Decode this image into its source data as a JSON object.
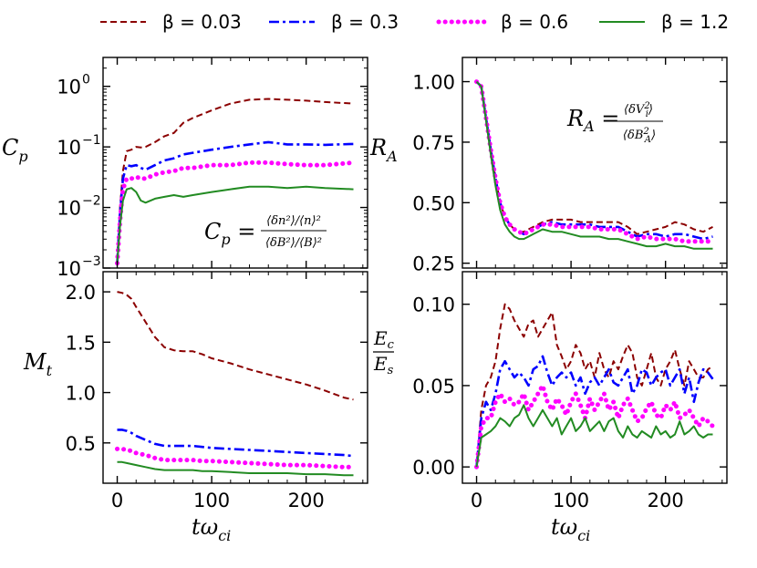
{
  "legend": [
    {
      "label": "β = 0.03",
      "color": "#8b0000",
      "dash": "dashed"
    },
    {
      "label": "β = 0.3",
      "color": "#0000ff",
      "dash": "dashdot"
    },
    {
      "label": "β = 0.6",
      "color": "#ff00ff",
      "dash": "dotted"
    },
    {
      "label": "β = 1.2",
      "color": "#228b22",
      "dash": "solid"
    }
  ],
  "chart_data": [
    {
      "type": "line",
      "panel": "top-left",
      "ylabel": "C_p",
      "xlabel": "",
      "yscale": "log",
      "xlim": [
        -15,
        265
      ],
      "ylim": [
        0.001,
        3
      ],
      "yticks": [
        0.001,
        0.01,
        0.1,
        1
      ],
      "ytick_labels": [
        "10",
        "10",
        "10",
        "10"
      ],
      "ytick_exponents": [
        "−3",
        "−2",
        "−1",
        "0"
      ],
      "xticks": [
        0,
        100,
        200
      ],
      "xtick_labels": [
        "",
        "",
        ""
      ],
      "annotation": "C_p = ⟨δn²⟩/⟨n⟩² / ⟨δB²⟩/⟨B⟩²",
      "x": [
        0,
        3,
        6,
        10,
        15,
        20,
        25,
        30,
        40,
        50,
        60,
        70,
        80,
        100,
        120,
        140,
        160,
        180,
        200,
        220,
        250
      ],
      "series": [
        {
          "name": "β = 0.03",
          "values": [
            0.0013,
            0.01,
            0.04,
            0.085,
            0.09,
            0.1,
            0.098,
            0.1,
            0.12,
            0.15,
            0.17,
            0.25,
            0.3,
            0.4,
            0.52,
            0.6,
            0.62,
            0.6,
            0.58,
            0.55,
            0.52
          ]
        },
        {
          "name": "β = 0.3",
          "values": [
            0.0012,
            0.008,
            0.03,
            0.05,
            0.048,
            0.05,
            0.045,
            0.042,
            0.05,
            0.06,
            0.065,
            0.075,
            0.08,
            0.09,
            0.1,
            0.11,
            0.12,
            0.11,
            0.11,
            0.108,
            0.112
          ]
        },
        {
          "name": "β = 0.6",
          "values": [
            0.0012,
            0.006,
            0.02,
            0.03,
            0.03,
            0.032,
            0.03,
            0.03,
            0.035,
            0.038,
            0.04,
            0.045,
            0.045,
            0.05,
            0.05,
            0.055,
            0.055,
            0.052,
            0.05,
            0.05,
            0.055
          ]
        },
        {
          "name": "β = 1.2",
          "values": [
            0.0012,
            0.005,
            0.013,
            0.02,
            0.021,
            0.018,
            0.013,
            0.012,
            0.014,
            0.015,
            0.016,
            0.015,
            0.016,
            0.018,
            0.02,
            0.022,
            0.022,
            0.021,
            0.022,
            0.021,
            0.02
          ]
        }
      ]
    },
    {
      "type": "line",
      "panel": "top-right",
      "ylabel": "R_A",
      "xlabel": "",
      "yscale": "linear",
      "xlim": [
        -15,
        265
      ],
      "ylim": [
        0.23,
        1.1
      ],
      "yticks": [
        0.25,
        0.5,
        0.75,
        1.0
      ],
      "ytick_labels": [
        "0.25",
        "0.50",
        "0.75",
        "1.00"
      ],
      "xticks": [
        0,
        100,
        200
      ],
      "xtick_labels": [
        "",
        "",
        ""
      ],
      "annotation": "R_A = ⟨δV_i²⟩ / ⟨δB_A²⟩",
      "x": [
        0,
        5,
        10,
        15,
        20,
        25,
        30,
        35,
        40,
        45,
        50,
        55,
        60,
        70,
        80,
        90,
        100,
        110,
        120,
        130,
        140,
        150,
        160,
        170,
        180,
        190,
        200,
        210,
        220,
        230,
        240,
        250
      ],
      "series": [
        {
          "name": "β = 0.03",
          "values": [
            1.0,
            0.98,
            0.85,
            0.72,
            0.6,
            0.5,
            0.44,
            0.41,
            0.39,
            0.38,
            0.38,
            0.39,
            0.4,
            0.42,
            0.43,
            0.43,
            0.43,
            0.42,
            0.42,
            0.42,
            0.42,
            0.42,
            0.4,
            0.37,
            0.38,
            0.39,
            0.4,
            0.42,
            0.41,
            0.39,
            0.38,
            0.4
          ]
        },
        {
          "name": "β = 0.3",
          "values": [
            1.0,
            0.98,
            0.85,
            0.72,
            0.6,
            0.5,
            0.44,
            0.41,
            0.39,
            0.38,
            0.37,
            0.38,
            0.39,
            0.41,
            0.42,
            0.41,
            0.41,
            0.41,
            0.41,
            0.4,
            0.4,
            0.4,
            0.38,
            0.36,
            0.37,
            0.37,
            0.36,
            0.37,
            0.37,
            0.36,
            0.35,
            0.36
          ]
        },
        {
          "name": "β = 0.6",
          "values": [
            1.0,
            0.98,
            0.85,
            0.72,
            0.6,
            0.5,
            0.44,
            0.41,
            0.39,
            0.38,
            0.37,
            0.38,
            0.39,
            0.41,
            0.41,
            0.4,
            0.4,
            0.4,
            0.4,
            0.39,
            0.39,
            0.39,
            0.37,
            0.35,
            0.36,
            0.35,
            0.35,
            0.35,
            0.34,
            0.34,
            0.34,
            0.34
          ]
        },
        {
          "name": "β = 1.2",
          "values": [
            1.0,
            0.98,
            0.84,
            0.7,
            0.57,
            0.47,
            0.41,
            0.38,
            0.36,
            0.35,
            0.35,
            0.36,
            0.37,
            0.39,
            0.38,
            0.38,
            0.37,
            0.36,
            0.36,
            0.36,
            0.35,
            0.35,
            0.34,
            0.33,
            0.32,
            0.32,
            0.33,
            0.32,
            0.32,
            0.31,
            0.31,
            0.31
          ]
        }
      ]
    },
    {
      "type": "line",
      "panel": "bottom-left",
      "ylabel": "M_t",
      "xlabel": "tω_ci",
      "yscale": "linear",
      "xlim": [
        -15,
        265
      ],
      "ylim": [
        0.1,
        2.2
      ],
      "yticks": [
        0.5,
        1.0,
        1.5,
        2.0
      ],
      "ytick_labels": [
        "0.5",
        "1.0",
        "1.5",
        "2.0"
      ],
      "xticks": [
        0,
        100,
        200
      ],
      "xtick_labels": [
        "0",
        "100",
        "200"
      ],
      "x": [
        0,
        5,
        10,
        15,
        20,
        30,
        40,
        50,
        60,
        70,
        80,
        90,
        100,
        120,
        140,
        160,
        180,
        200,
        220,
        240,
        250
      ],
      "series": [
        {
          "name": "β = 0.03",
          "values": [
            2.0,
            1.99,
            1.97,
            1.93,
            1.85,
            1.7,
            1.55,
            1.45,
            1.42,
            1.41,
            1.41,
            1.38,
            1.34,
            1.29,
            1.23,
            1.18,
            1.13,
            1.08,
            1.02,
            0.95,
            0.93
          ]
        },
        {
          "name": "β = 0.3",
          "values": [
            0.63,
            0.63,
            0.62,
            0.6,
            0.57,
            0.53,
            0.49,
            0.47,
            0.47,
            0.47,
            0.47,
            0.46,
            0.45,
            0.44,
            0.43,
            0.42,
            0.41,
            0.4,
            0.39,
            0.38,
            0.37
          ]
        },
        {
          "name": "β = 0.6",
          "values": [
            0.44,
            0.44,
            0.43,
            0.42,
            0.4,
            0.38,
            0.35,
            0.33,
            0.33,
            0.33,
            0.33,
            0.32,
            0.32,
            0.31,
            0.3,
            0.29,
            0.28,
            0.28,
            0.27,
            0.26,
            0.26
          ]
        },
        {
          "name": "β = 1.2",
          "values": [
            0.31,
            0.31,
            0.3,
            0.29,
            0.28,
            0.26,
            0.24,
            0.23,
            0.23,
            0.23,
            0.23,
            0.22,
            0.22,
            0.21,
            0.2,
            0.2,
            0.2,
            0.19,
            0.19,
            0.18,
            0.18
          ]
        }
      ]
    },
    {
      "type": "line",
      "panel": "bottom-right",
      "ylabel": "E_c / E_s",
      "xlabel": "tω_ci",
      "yscale": "linear",
      "xlim": [
        -15,
        265
      ],
      "ylim": [
        -0.01,
        0.12
      ],
      "yticks": [
        0.0,
        0.05,
        0.1
      ],
      "ytick_labels": [
        "0.00",
        "0.05",
        "0.10"
      ],
      "xticks": [
        0,
        100,
        200
      ],
      "xtick_labels": [
        "0",
        "100",
        "200"
      ],
      "x": [
        0,
        5,
        10,
        15,
        20,
        25,
        30,
        35,
        40,
        45,
        50,
        55,
        60,
        65,
        70,
        75,
        80,
        85,
        90,
        95,
        100,
        105,
        110,
        115,
        120,
        125,
        130,
        135,
        140,
        145,
        150,
        155,
        160,
        165,
        170,
        175,
        180,
        185,
        190,
        195,
        200,
        205,
        210,
        215,
        220,
        225,
        230,
        235,
        240,
        245,
        250
      ],
      "series": [
        {
          "name": "β = 0.03",
          "values": [
            0.0,
            0.035,
            0.05,
            0.055,
            0.065,
            0.085,
            0.1,
            0.097,
            0.09,
            0.085,
            0.08,
            0.088,
            0.09,
            0.08,
            0.085,
            0.09,
            0.095,
            0.075,
            0.068,
            0.06,
            0.065,
            0.075,
            0.07,
            0.06,
            0.065,
            0.055,
            0.07,
            0.06,
            0.055,
            0.065,
            0.06,
            0.068,
            0.075,
            0.07,
            0.055,
            0.05,
            0.06,
            0.07,
            0.055,
            0.05,
            0.06,
            0.065,
            0.072,
            0.06,
            0.05,
            0.065,
            0.06,
            0.055,
            0.055,
            0.06,
            0.062
          ]
        },
        {
          "name": "β = 0.3",
          "values": [
            0.0,
            0.03,
            0.04,
            0.035,
            0.045,
            0.06,
            0.065,
            0.06,
            0.055,
            0.058,
            0.055,
            0.05,
            0.06,
            0.062,
            0.068,
            0.058,
            0.05,
            0.055,
            0.058,
            0.055,
            0.058,
            0.05,
            0.055,
            0.045,
            0.052,
            0.055,
            0.05,
            0.055,
            0.06,
            0.052,
            0.05,
            0.055,
            0.06,
            0.045,
            0.05,
            0.06,
            0.058,
            0.05,
            0.055,
            0.058,
            0.06,
            0.05,
            0.055,
            0.06,
            0.045,
            0.055,
            0.04,
            0.052,
            0.06,
            0.058,
            0.054
          ]
        },
        {
          "name": "β = 0.6",
          "values": [
            0.0,
            0.025,
            0.03,
            0.03,
            0.04,
            0.045,
            0.04,
            0.042,
            0.038,
            0.04,
            0.045,
            0.035,
            0.04,
            0.045,
            0.05,
            0.04,
            0.035,
            0.042,
            0.038,
            0.032,
            0.04,
            0.045,
            0.038,
            0.03,
            0.042,
            0.035,
            0.04,
            0.045,
            0.035,
            0.04,
            0.03,
            0.038,
            0.042,
            0.035,
            0.028,
            0.03,
            0.036,
            0.04,
            0.032,
            0.03,
            0.038,
            0.035,
            0.04,
            0.03,
            0.032,
            0.035,
            0.03,
            0.025,
            0.03,
            0.028,
            0.025
          ]
        },
        {
          "name": "β = 1.2",
          "values": [
            0.0,
            0.018,
            0.02,
            0.022,
            0.025,
            0.03,
            0.028,
            0.025,
            0.03,
            0.032,
            0.038,
            0.03,
            0.025,
            0.03,
            0.035,
            0.03,
            0.025,
            0.03,
            0.02,
            0.025,
            0.03,
            0.022,
            0.025,
            0.03,
            0.022,
            0.025,
            0.028,
            0.022,
            0.028,
            0.03,
            0.022,
            0.018,
            0.025,
            0.02,
            0.018,
            0.022,
            0.02,
            0.018,
            0.025,
            0.02,
            0.022,
            0.018,
            0.02,
            0.028,
            0.02,
            0.022,
            0.025,
            0.02,
            0.018,
            0.02,
            0.02
          ]
        }
      ]
    }
  ]
}
